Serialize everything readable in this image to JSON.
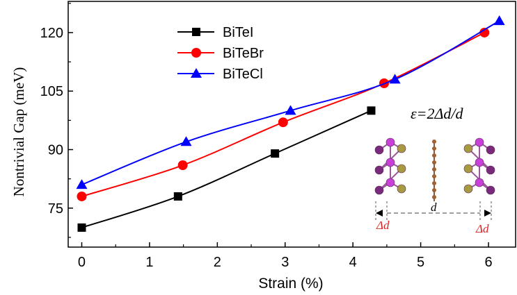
{
  "chart_data": {
    "type": "line",
    "xlabel": "Strain (%)",
    "ylabel": "Nontrivial Gap  (meV)",
    "xlim": [
      -0.2,
      6.4
    ],
    "ylim": [
      65,
      128
    ],
    "x_ticks": [
      0,
      1,
      2,
      3,
      4,
      5,
      6
    ],
    "y_ticks": [
      75,
      90,
      105,
      120
    ],
    "legend_position": "top-left",
    "series": [
      {
        "name": "BiTeI",
        "color": "#000000",
        "marker": "square",
        "x": [
          0,
          1.42,
          2.85,
          4.27
        ],
        "y": [
          70,
          78,
          89,
          100
        ]
      },
      {
        "name": "BiTeBr",
        "color": "#ff0000",
        "marker": "circle",
        "x": [
          0,
          1.49,
          2.97,
          4.46,
          5.94
        ],
        "y": [
          78,
          86,
          97,
          107,
          120
        ]
      },
      {
        "name": "BiTeCl",
        "color": "#0000ff",
        "marker": "triangle",
        "x": [
          0,
          1.54,
          3.08,
          4.62,
          6.16
        ],
        "y": [
          81,
          92,
          100,
          108,
          123
        ]
      }
    ],
    "annotations": {
      "formula": "ε=2Δd/d",
      "d_label": "d",
      "delta_left": "Δd",
      "delta_right": "Δd"
    }
  }
}
